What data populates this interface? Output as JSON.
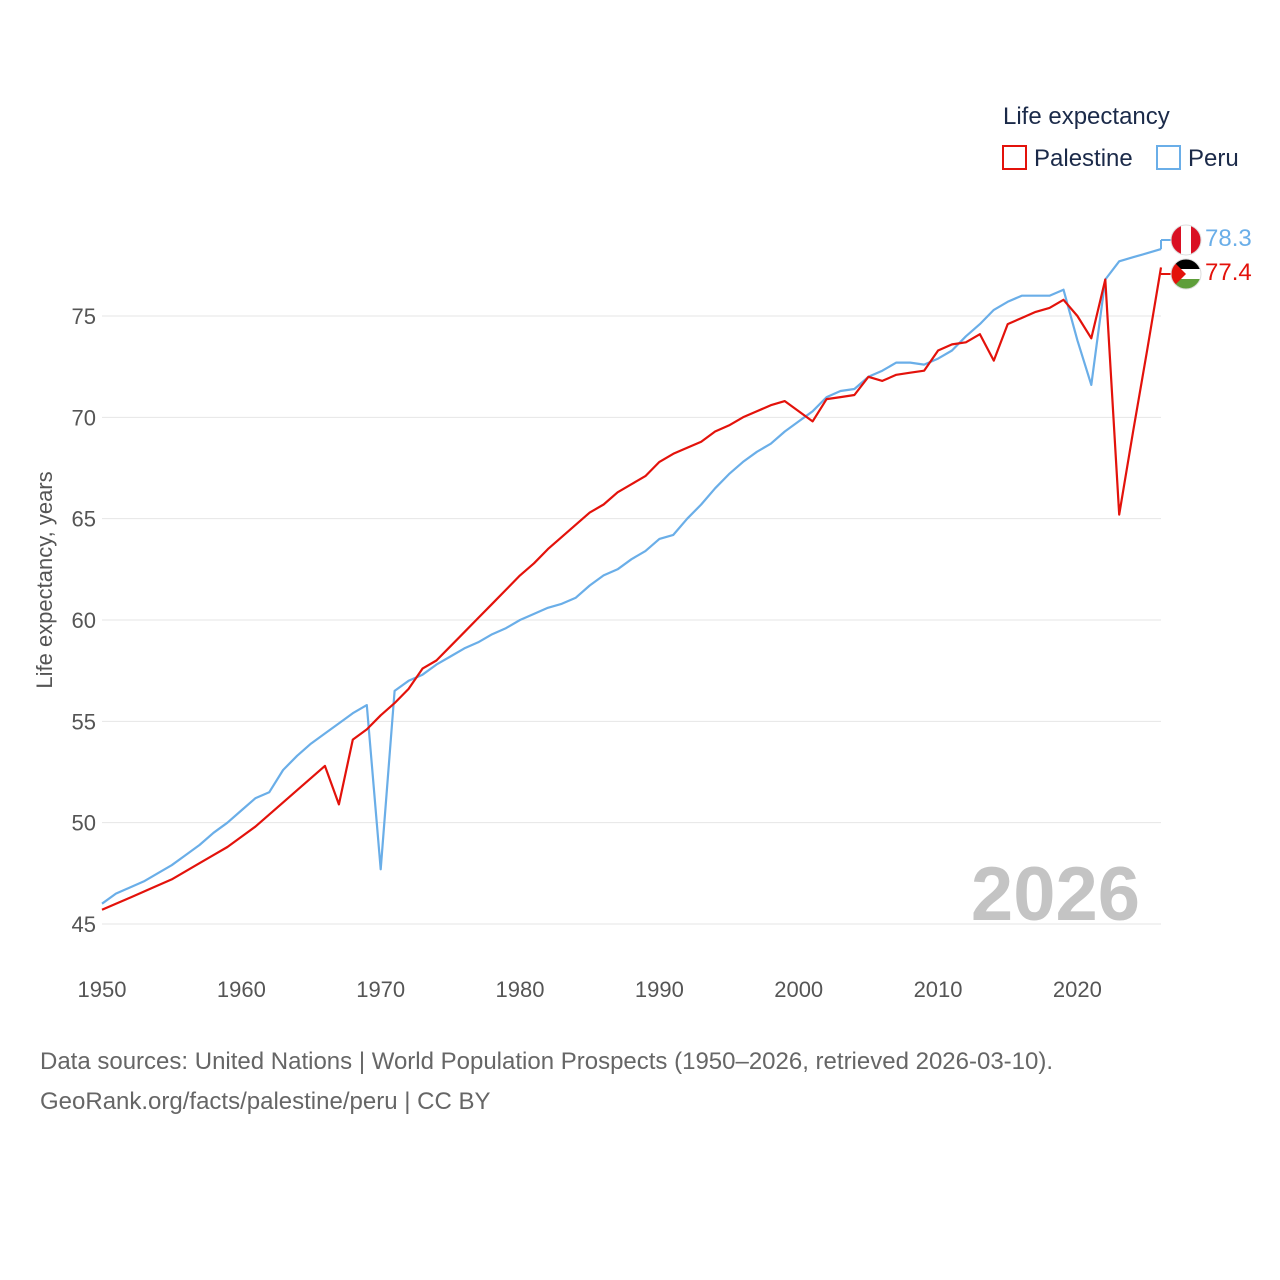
{
  "chart_data": {
    "type": "line",
    "title": "",
    "xlabel": "",
    "ylabel": "Life expectancy, years",
    "xlim": [
      1950,
      2026
    ],
    "ylim": [
      45,
      78.5
    ],
    "x_ticks": [
      1950,
      1960,
      1970,
      1980,
      1990,
      2000,
      2010,
      2020
    ],
    "y_ticks": [
      45,
      50,
      55,
      60,
      65,
      70,
      75
    ],
    "grid": "horizontal",
    "legend_title": "Life expectancy",
    "legend_position": "top-right",
    "year_label": "2026",
    "x": [
      1950,
      1951,
      1952,
      1953,
      1954,
      1955,
      1956,
      1957,
      1958,
      1959,
      1960,
      1961,
      1962,
      1963,
      1964,
      1965,
      1966,
      1967,
      1968,
      1969,
      1970,
      1971,
      1972,
      1973,
      1974,
      1975,
      1976,
      1977,
      1978,
      1979,
      1980,
      1981,
      1982,
      1983,
      1984,
      1985,
      1986,
      1987,
      1988,
      1989,
      1990,
      1991,
      1992,
      1993,
      1994,
      1995,
      1996,
      1997,
      1998,
      1999,
      2000,
      2001,
      2002,
      2003,
      2004,
      2005,
      2006,
      2007,
      2008,
      2009,
      2010,
      2011,
      2012,
      2013,
      2014,
      2015,
      2016,
      2017,
      2018,
      2019,
      2020,
      2021,
      2022,
      2023,
      2024,
      2025,
      2026
    ],
    "series": [
      {
        "name": "Palestine",
        "color": "#e3120b",
        "end_label": "77.4",
        "values": [
          45.7,
          46.0,
          46.3,
          46.6,
          46.9,
          47.2,
          47.6,
          48.0,
          48.4,
          48.8,
          49.3,
          49.8,
          50.4,
          51.0,
          51.6,
          52.2,
          52.8,
          50.9,
          54.1,
          54.6,
          55.3,
          55.9,
          56.6,
          57.6,
          58.0,
          58.7,
          59.4,
          60.1,
          60.8,
          61.5,
          62.2,
          62.8,
          63.5,
          64.1,
          64.7,
          65.3,
          65.7,
          66.3,
          66.7,
          67.1,
          67.8,
          68.2,
          68.5,
          68.8,
          69.3,
          69.6,
          70.0,
          70.3,
          70.6,
          70.8,
          70.3,
          69.8,
          70.9,
          71.0,
          71.1,
          72.0,
          71.8,
          72.1,
          72.2,
          72.3,
          73.3,
          73.6,
          73.7,
          74.1,
          72.8,
          74.6,
          74.9,
          75.2,
          75.4,
          75.8,
          75.0,
          73.9,
          76.8,
          65.2,
          69.3,
          73.3,
          77.4
        ]
      },
      {
        "name": "Peru",
        "color": "#6aaee8",
        "end_label": "78.3",
        "values": [
          46.0,
          46.5,
          46.8,
          47.1,
          47.5,
          47.9,
          48.4,
          48.9,
          49.5,
          50.0,
          50.6,
          51.2,
          51.5,
          52.6,
          53.3,
          53.9,
          54.4,
          54.9,
          55.4,
          55.8,
          47.7,
          56.5,
          57.0,
          57.3,
          57.8,
          58.2,
          58.6,
          58.9,
          59.3,
          59.6,
          60.0,
          60.3,
          60.6,
          60.8,
          61.1,
          61.7,
          62.2,
          62.5,
          63.0,
          63.4,
          64.0,
          64.2,
          65.0,
          65.7,
          66.5,
          67.2,
          67.8,
          68.3,
          68.7,
          69.3,
          69.8,
          70.3,
          71.0,
          71.3,
          71.4,
          72.0,
          72.3,
          72.7,
          72.7,
          72.6,
          72.9,
          73.3,
          74.0,
          74.6,
          75.3,
          75.7,
          76.0,
          76.0,
          76.0,
          76.3,
          73.8,
          71.6,
          76.8,
          77.7,
          77.9,
          78.1,
          78.3
        ]
      }
    ]
  },
  "footer": {
    "sources": "Data sources: United Nations | World Population Prospects (1950–2026, retrieved 2026-03-10).",
    "attribution": "GeoRank.org/facts/palestine/peru | CC BY"
  },
  "flags": {
    "peru": "peru-flag-icon",
    "palestine": "palestine-flag-icon"
  }
}
